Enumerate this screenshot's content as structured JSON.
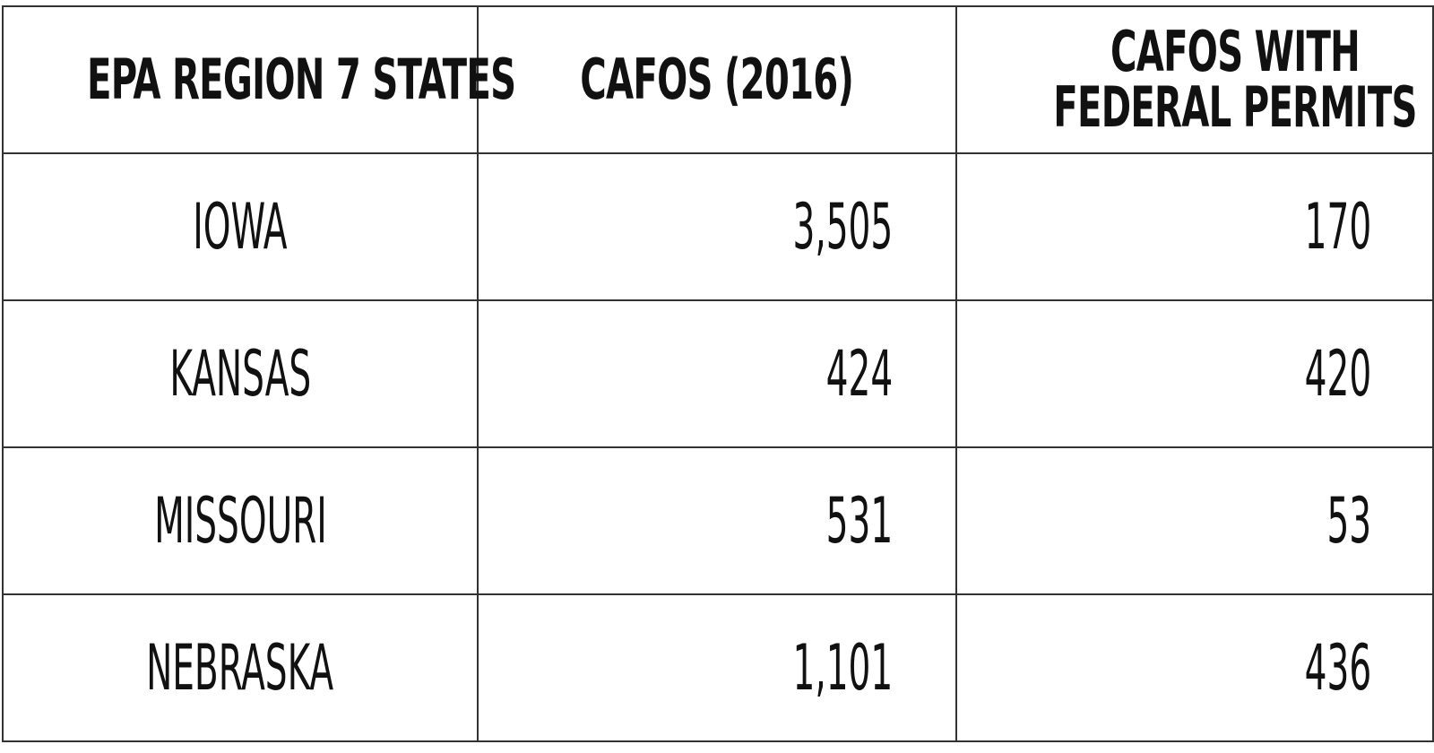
{
  "chart_data": {
    "type": "table",
    "columns": [
      "EPA REGION 7 STATES",
      "CAFOS (2016)",
      "CAFOS WITH FEDERAL PERMITS"
    ],
    "rows": [
      {
        "state": "IOWA",
        "cafos_2016": "3,505",
        "federal_permits": "170"
      },
      {
        "state": "KANSAS",
        "cafos_2016": "424",
        "federal_permits": "420"
      },
      {
        "state": "MISSOURI",
        "cafos_2016": "531",
        "federal_permits": "53"
      },
      {
        "state": "NEBRASKA",
        "cafos_2016": "1,101",
        "federal_permits": "436"
      }
    ]
  },
  "colors": {
    "border": "#333333",
    "text": "#111111",
    "background": "#ffffff"
  }
}
